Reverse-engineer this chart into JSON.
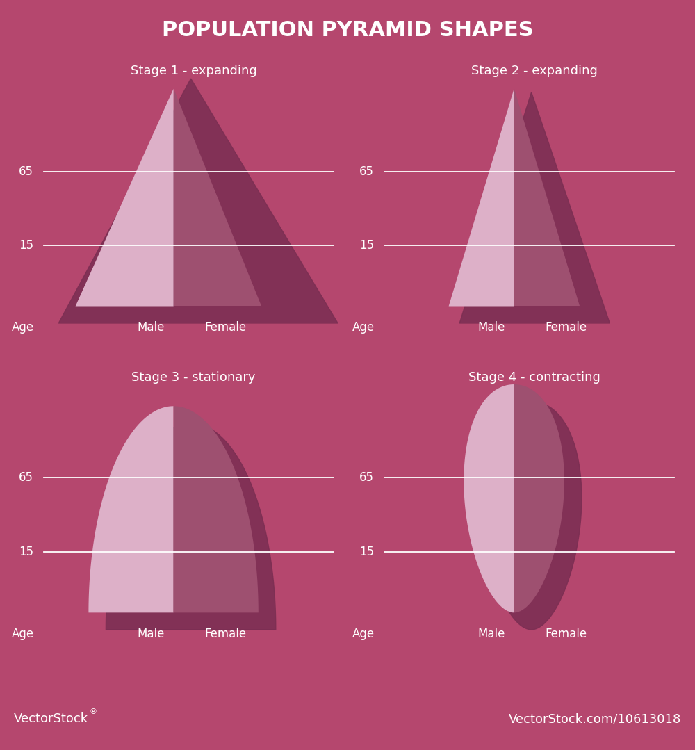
{
  "title": "POPULATION PYRAMID SHAPES",
  "title_color": "#ffffff",
  "bg_color": "#b5476e",
  "footer_color": "#1a1a2e",
  "footer_text_left": "VectorStock®",
  "footer_text_right": "VectorStock.com/10613018",
  "stages": [
    {
      "title": "Stage 1 - expanding",
      "shape": "triangle_wide"
    },
    {
      "title": "Stage 2 - expanding",
      "shape": "triangle_narrow"
    },
    {
      "title": "Stage 3 - stationary",
      "shape": "arch"
    },
    {
      "title": "Stage 4 - contracting",
      "shape": "egg"
    }
  ],
  "male_color_light": "#ddb0c8",
  "female_color_dark": "#9e5070",
  "shadow_color": "#7a2e52",
  "line_color": "#ffffff",
  "text_color": "#ffffff"
}
